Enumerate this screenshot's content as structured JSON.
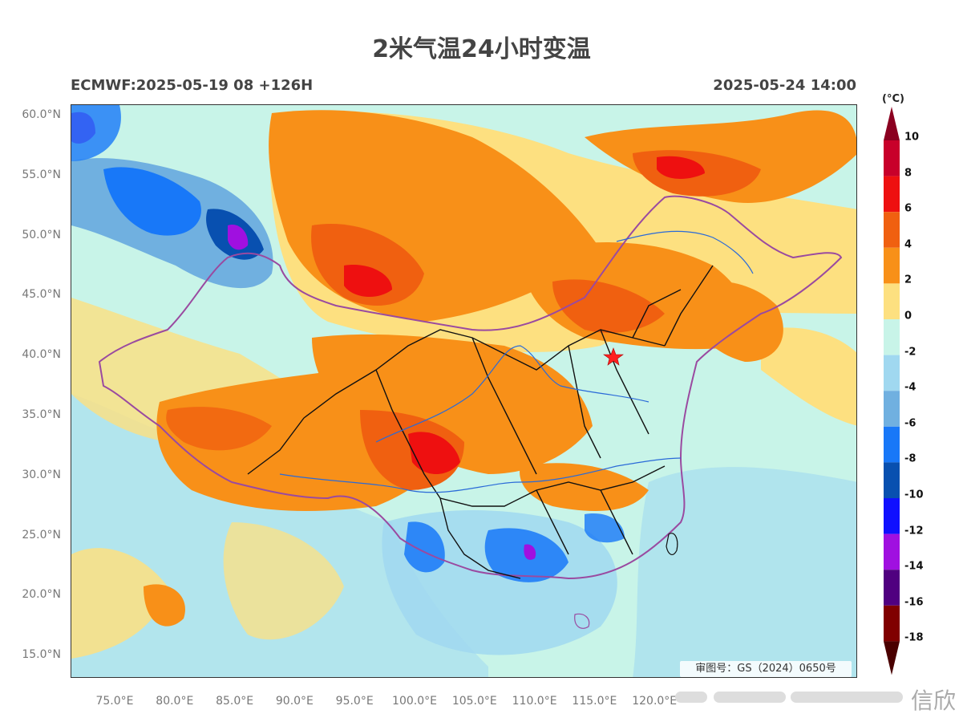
{
  "title": "2米气温24小时变温",
  "subtitle_left": "ECMWF:2025-05-19 08 +126H",
  "subtitle_right": "2025-05-24 14:00",
  "lat_labels": [
    "60.0°N",
    "55.0°N",
    "50.0°N",
    "45.0°N",
    "40.0°N",
    "35.0°N",
    "30.0°N",
    "25.0°N",
    "20.0°N",
    "15.0°N"
  ],
  "lon_labels": [
    "75.0°E",
    "80.0°E",
    "85.0°E",
    "90.0°E",
    "95.0°E",
    "100.0°E",
    "105.0°E",
    "110.0°E",
    "115.0°E",
    "120.0°E"
  ],
  "colorbar": {
    "unit": "(°C)",
    "ticks": [
      "10",
      "8",
      "6",
      "4",
      "2",
      "0",
      "-2",
      "-4",
      "-6",
      "-8",
      "-10",
      "-12",
      "-14",
      "-16",
      "-18"
    ],
    "colors": [
      "#8b0020",
      "#c8002a",
      "#ee1010",
      "#f06010",
      "#f89018",
      "#fde080",
      "#c8f4e8",
      "#a0d8f0",
      "#70b0e0",
      "#1878f8",
      "#0850b0",
      "#1010ff",
      "#a010e0",
      "#500080",
      "#800000",
      "#4a0000"
    ]
  },
  "map": {
    "lon_range": [
      71,
      125
    ],
    "lat_range": [
      13,
      61
    ],
    "marker": "capital-star"
  },
  "review_number": "审图号：GS（2024）0650号",
  "watermark": "信欣"
}
